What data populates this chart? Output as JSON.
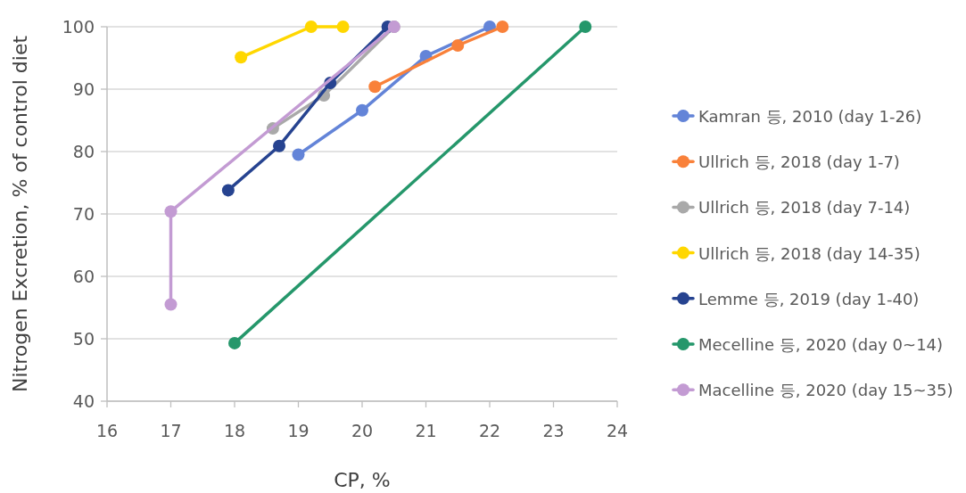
{
  "chart_data": {
    "type": "line",
    "xlabel": "CP, %",
    "ylabel": "Nitrogen Excretion, % of control diet",
    "xlim": [
      16,
      24
    ],
    "xticks": [
      16,
      17,
      18,
      19,
      20,
      21,
      22,
      23,
      24
    ],
    "ylim": [
      40,
      100
    ],
    "yticks": [
      40,
      50,
      60,
      70,
      80,
      90,
      100
    ],
    "grid": "y",
    "legend": "right",
    "marker": "circle",
    "line_style": "solid",
    "series": [
      {
        "name": "Kamran 등, 2010 (day 1-26)",
        "color": "#6384d8",
        "x": [
          19.0,
          20.0,
          21.0,
          22.0
        ],
        "values": [
          79.5,
          86.6,
          95.3,
          100
        ]
      },
      {
        "name": "Ullrich 등, 2018 (day 1-7)",
        "color": "#f9813a",
        "x": [
          20.2,
          21.5,
          22.2
        ],
        "values": [
          90.4,
          97.0,
          100
        ]
      },
      {
        "name": "Ullrich 등, 2018 (day 7-14)",
        "color": "#a9a9a9",
        "x": [
          18.6,
          19.4,
          20.5
        ],
        "values": [
          83.7,
          89.0,
          100
        ]
      },
      {
        "name": "Ullrich 등, 2018 (day 14-35)",
        "color": "#ffd700",
        "x": [
          18.1,
          19.2,
          19.7
        ],
        "values": [
          95.1,
          100,
          100
        ]
      },
      {
        "name": "Lemme 등, 2019 (day 1-40)",
        "color": "#264390",
        "x": [
          17.9,
          18.7,
          19.5,
          20.4
        ],
        "values": [
          73.8,
          80.9,
          91.0,
          100
        ]
      },
      {
        "name": "Mecelline 등, 2020 (day 0~14)",
        "color": "#25976b",
        "x": [
          18.0,
          23.5
        ],
        "values": [
          49.3,
          100
        ]
      },
      {
        "name": "Macelline 등, 2020 (day 15~35)",
        "color": "#c39bd3",
        "x": [
          17.0,
          17.0,
          20.5
        ],
        "values": [
          55.5,
          70.4,
          100
        ]
      }
    ]
  }
}
